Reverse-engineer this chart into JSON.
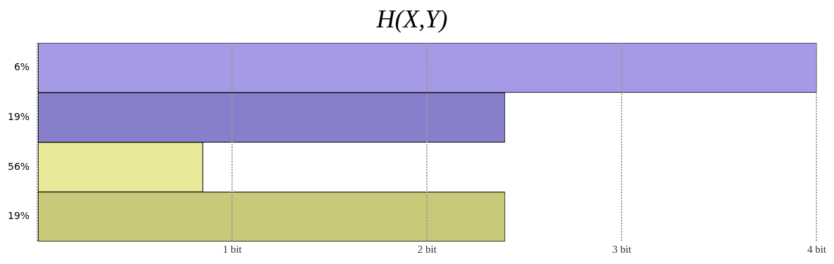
{
  "chart_data": {
    "type": "bar",
    "orientation": "horizontal",
    "title": "H(X,Y)",
    "categories": [
      "6%",
      "19%",
      "56%",
      "19%"
    ],
    "values": [
      4,
      2.4,
      0.85,
      2.4
    ],
    "colors": [
      "#a59ae6",
      "#877fcc",
      "#e9e898",
      "#c8ca7a"
    ],
    "xlim": [
      0,
      4
    ],
    "xticks": [
      {
        "value": 0,
        "label": null
      },
      {
        "value": 1,
        "label": "1 bit"
      },
      {
        "value": 2,
        "label": "2 bit"
      },
      {
        "value": 3,
        "label": "3 bit"
      },
      {
        "value": 4,
        "label": "4 bit"
      }
    ],
    "grid": "x",
    "legend": false
  }
}
